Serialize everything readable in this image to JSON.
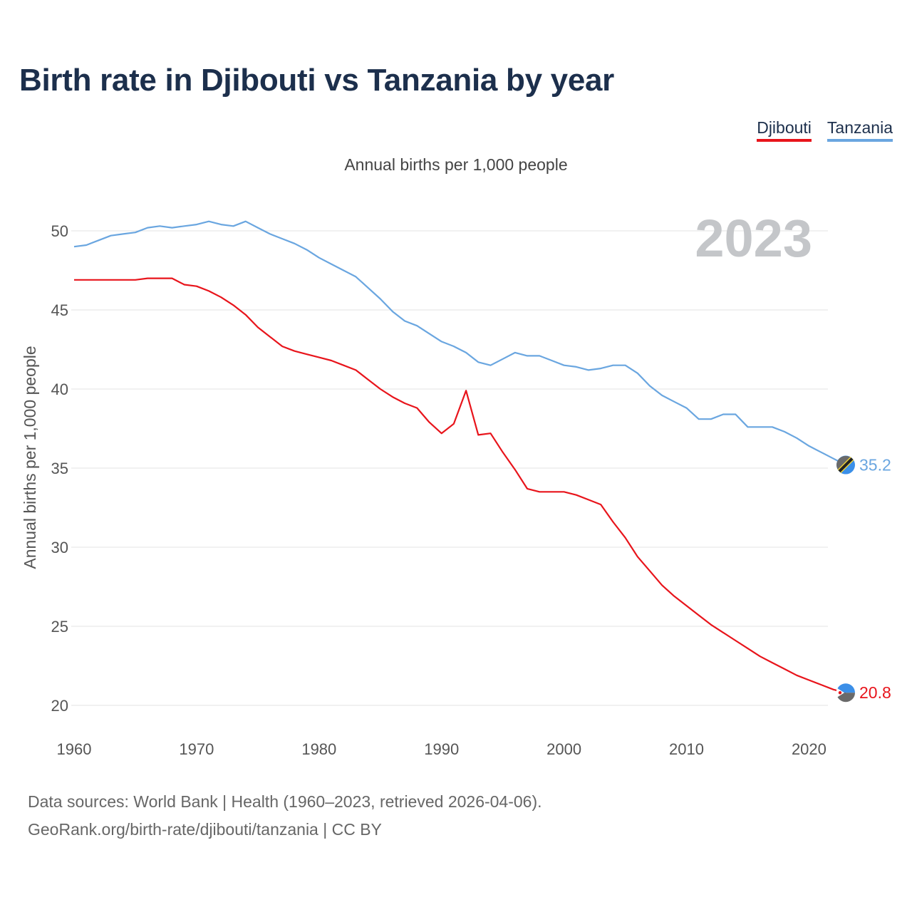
{
  "title": "Birth rate in Djibouti vs Tanzania by year",
  "subtitle": "Annual births per 1,000 people",
  "footer": {
    "line1": "Data sources: World Bank | Health (1960–2023, retrieved 2026-04-06).",
    "line2": "GeoRank.org/birth-rate/djibouti/tanzania | CC BY"
  },
  "chart_data": {
    "type": "line",
    "title": "Birth rate in Djibouti vs Tanzania by year",
    "ylabel": "Annual births per 1,000 people",
    "xlabel": "",
    "xlim": [
      1960,
      2023
    ],
    "ylim": [
      20,
      52
    ],
    "yticks": [
      20,
      25,
      30,
      35,
      40,
      45,
      50
    ],
    "xticks": [
      1960,
      1970,
      1980,
      1990,
      2000,
      2010,
      2020
    ],
    "grid": true,
    "legend": "top-right",
    "year_watermark": "2023",
    "x": [
      1960,
      1961,
      1962,
      1963,
      1964,
      1965,
      1966,
      1967,
      1968,
      1969,
      1970,
      1971,
      1972,
      1973,
      1974,
      1975,
      1976,
      1977,
      1978,
      1979,
      1980,
      1981,
      1982,
      1983,
      1984,
      1985,
      1986,
      1987,
      1988,
      1989,
      1990,
      1991,
      1992,
      1993,
      1994,
      1995,
      1996,
      1997,
      1998,
      1999,
      2000,
      2001,
      2002,
      2003,
      2004,
      2005,
      2006,
      2007,
      2008,
      2009,
      2010,
      2011,
      2012,
      2013,
      2014,
      2015,
      2016,
      2017,
      2018,
      2019,
      2020,
      2021,
      2022,
      2023
    ],
    "series": [
      {
        "name": "Djibouti",
        "color": "#e8141b",
        "end_label": "20.8",
        "values": [
          46.9,
          46.9,
          46.9,
          46.9,
          46.9,
          46.9,
          47.0,
          47.0,
          47.0,
          46.6,
          46.5,
          46.2,
          45.8,
          45.3,
          44.7,
          43.9,
          43.3,
          42.7,
          42.4,
          42.2,
          42.0,
          41.8,
          41.5,
          41.2,
          40.6,
          40.0,
          39.5,
          39.1,
          38.8,
          37.9,
          37.2,
          37.8,
          39.9,
          37.1,
          37.2,
          36.0,
          34.9,
          33.7,
          33.5,
          33.5,
          33.5,
          33.3,
          33.0,
          32.7,
          31.6,
          30.6,
          29.4,
          28.5,
          27.6,
          26.9,
          26.3,
          25.7,
          25.1,
          24.6,
          24.1,
          23.6,
          23.1,
          22.7,
          22.3,
          21.9,
          21.6,
          21.3,
          21.0,
          20.8
        ]
      },
      {
        "name": "Tanzania",
        "color": "#6aa6e0",
        "end_label": "35.2",
        "values": [
          49.0,
          49.1,
          49.4,
          49.7,
          49.8,
          49.9,
          50.2,
          50.3,
          50.2,
          50.3,
          50.4,
          50.6,
          50.4,
          50.3,
          50.6,
          50.2,
          49.8,
          49.5,
          49.2,
          48.8,
          48.3,
          47.9,
          47.5,
          47.1,
          46.4,
          45.7,
          44.9,
          44.3,
          44.0,
          43.5,
          43.0,
          42.7,
          42.3,
          41.7,
          41.5,
          41.9,
          42.3,
          42.1,
          42.1,
          41.8,
          41.5,
          41.4,
          41.2,
          41.3,
          41.5,
          41.5,
          41.0,
          40.2,
          39.6,
          39.2,
          38.8,
          38.1,
          38.1,
          38.4,
          38.4,
          37.6,
          37.6,
          37.6,
          37.3,
          36.9,
          36.4,
          36.0,
          35.6,
          35.2
        ]
      }
    ]
  }
}
